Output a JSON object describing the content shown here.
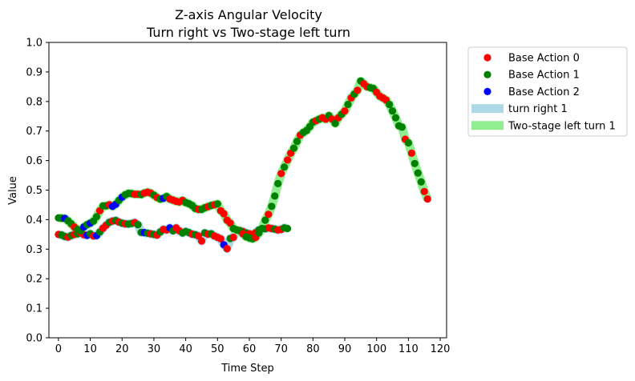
{
  "chart_data": {
    "type": "scatter",
    "title": "Z-axis Angular Velocity",
    "subtitle": "Turn right vs Two-stage left turn",
    "xlabel": "Time Step",
    "ylabel": "Value",
    "xlim": [
      -3,
      122
    ],
    "ylim": [
      0.0,
      1.0
    ],
    "xticks": [
      0,
      10,
      20,
      30,
      40,
      50,
      60,
      70,
      80,
      90,
      100,
      110,
      120
    ],
    "yticks": [
      0.0,
      0.1,
      0.2,
      0.3,
      0.4,
      0.5,
      0.6,
      0.7,
      0.8,
      0.9,
      1.0
    ],
    "grid": false,
    "legend_position": "outside-right-top",
    "colors": {
      "base_action_0": "#ff0000",
      "base_action_1": "#008000",
      "base_action_2": "#0000ff",
      "turn_right_1": "#add8e6",
      "two_stage_left_turn_1": "#90ee90"
    },
    "legend": [
      {
        "label": "Base Action 0",
        "kind": "point",
        "color": "#ff0000"
      },
      {
        "label": "Base Action 1",
        "kind": "point",
        "color": "#008000"
      },
      {
        "label": "Base Action 2",
        "kind": "point",
        "color": "#0000ff"
      },
      {
        "label": "turn right 1",
        "kind": "line",
        "color": "#add8e6"
      },
      {
        "label": "Two-stage left turn 1",
        "kind": "line",
        "color": "#90ee90"
      }
    ],
    "series": [
      {
        "name": "turn right 1",
        "color": "#add8e6",
        "points": [
          [
            0,
            0.35,
            0
          ],
          [
            1,
            0.348,
            1
          ],
          [
            2,
            0.343,
            1
          ],
          [
            3,
            0.341,
            0
          ],
          [
            4,
            0.346,
            1
          ],
          [
            5,
            0.35,
            0
          ],
          [
            6,
            0.352,
            1
          ],
          [
            7,
            0.355,
            0
          ],
          [
            8,
            0.349,
            0
          ],
          [
            9,
            0.347,
            2
          ],
          [
            10,
            0.352,
            1
          ],
          [
            11,
            0.345,
            0
          ],
          [
            12,
            0.346,
            2
          ],
          [
            13,
            0.358,
            1
          ],
          [
            14,
            0.371,
            0
          ],
          [
            15,
            0.381,
            0
          ],
          [
            16,
            0.391,
            1
          ],
          [
            17,
            0.395,
            0
          ],
          [
            18,
            0.397,
            1
          ],
          [
            19,
            0.392,
            0
          ],
          [
            20,
            0.388,
            1
          ],
          [
            21,
            0.386,
            0
          ],
          [
            22,
            0.385,
            1
          ],
          [
            23,
            0.387,
            1
          ],
          [
            24,
            0.39,
            0
          ],
          [
            25,
            0.383,
            1
          ],
          [
            26,
            0.357,
            1
          ],
          [
            27,
            0.356,
            2
          ],
          [
            28,
            0.354,
            1
          ],
          [
            29,
            0.352,
            0
          ],
          [
            30,
            0.35,
            1
          ],
          [
            31,
            0.348,
            0
          ],
          [
            32,
            0.358,
            1
          ],
          [
            33,
            0.367,
            0
          ],
          [
            34,
            0.365,
            0
          ],
          [
            35,
            0.372,
            2
          ],
          [
            36,
            0.362,
            1
          ],
          [
            37,
            0.372,
            0
          ],
          [
            38,
            0.362,
            0
          ],
          [
            39,
            0.355,
            1
          ],
          [
            40,
            0.36,
            1
          ],
          [
            41,
            0.356,
            1
          ],
          [
            42,
            0.351,
            0
          ],
          [
            43,
            0.349,
            1
          ],
          [
            44,
            0.345,
            0
          ],
          [
            45,
            0.328,
            0
          ],
          [
            46,
            0.355,
            1
          ],
          [
            47,
            0.351,
            0
          ],
          [
            48,
            0.352,
            1
          ],
          [
            49,
            0.345,
            0
          ],
          [
            50,
            0.34,
            0
          ],
          [
            51,
            0.335,
            0
          ],
          [
            52,
            0.315,
            2
          ],
          [
            53,
            0.302,
            0
          ],
          [
            54,
            0.336,
            1
          ],
          [
            55,
            0.34,
            0
          ],
          [
            56,
            0.365,
            0
          ],
          [
            57,
            0.363,
            0
          ],
          [
            58,
            0.36,
            0
          ],
          [
            59,
            0.355,
            1
          ],
          [
            60,
            0.352,
            0
          ],
          [
            61,
            0.35,
            0
          ],
          [
            62,
            0.356,
            0
          ],
          [
            63,
            0.365,
            1
          ],
          [
            64,
            0.37,
            0
          ],
          [
            65,
            0.369,
            1
          ],
          [
            66,
            0.372,
            0
          ],
          [
            67,
            0.37,
            0
          ],
          [
            68,
            0.368,
            1
          ],
          [
            69,
            0.365,
            0
          ],
          [
            70,
            0.367,
            0
          ],
          [
            71,
            0.372,
            1
          ],
          [
            72,
            0.37,
            1
          ]
        ]
      },
      {
        "name": "Two-stage left turn 1",
        "color": "#90ee90",
        "points": [
          [
            0,
            0.406,
            1
          ],
          [
            1,
            0.405,
            1
          ],
          [
            2,
            0.404,
            2
          ],
          [
            3,
            0.396,
            1
          ],
          [
            4,
            0.386,
            1
          ],
          [
            5,
            0.375,
            0
          ],
          [
            6,
            0.367,
            1
          ],
          [
            7,
            0.362,
            1
          ],
          [
            8,
            0.375,
            2
          ],
          [
            9,
            0.383,
            1
          ],
          [
            10,
            0.388,
            2
          ],
          [
            11,
            0.395,
            1
          ],
          [
            12,
            0.41,
            1
          ],
          [
            13,
            0.43,
            0
          ],
          [
            14,
            0.446,
            1
          ],
          [
            15,
            0.447,
            1
          ],
          [
            16,
            0.45,
            0
          ],
          [
            17,
            0.445,
            2
          ],
          [
            18,
            0.452,
            2
          ],
          [
            19,
            0.465,
            1
          ],
          [
            20,
            0.476,
            2
          ],
          [
            21,
            0.484,
            1
          ],
          [
            22,
            0.489,
            1
          ],
          [
            23,
            0.488,
            1
          ],
          [
            24,
            0.486,
            0
          ],
          [
            25,
            0.486,
            0
          ],
          [
            26,
            0.485,
            1
          ],
          [
            27,
            0.49,
            0
          ],
          [
            28,
            0.493,
            0
          ],
          [
            29,
            0.49,
            0
          ],
          [
            30,
            0.483,
            1
          ],
          [
            31,
            0.475,
            0
          ],
          [
            32,
            0.47,
            1
          ],
          [
            33,
            0.472,
            2
          ],
          [
            34,
            0.478,
            1
          ],
          [
            35,
            0.47,
            0
          ],
          [
            36,
            0.466,
            0
          ],
          [
            37,
            0.462,
            0
          ],
          [
            38,
            0.46,
            0
          ],
          [
            39,
            0.465,
            0
          ],
          [
            40,
            0.458,
            1
          ],
          [
            41,
            0.454,
            1
          ],
          [
            42,
            0.448,
            1
          ],
          [
            43,
            0.438,
            1
          ],
          [
            44,
            0.435,
            0
          ],
          [
            45,
            0.435,
            1
          ],
          [
            46,
            0.44,
            1
          ],
          [
            47,
            0.444,
            0
          ],
          [
            48,
            0.448,
            1
          ],
          [
            49,
            0.45,
            0
          ],
          [
            50,
            0.453,
            1
          ],
          [
            51,
            0.43,
            0
          ],
          [
            52,
            0.42,
            0
          ],
          [
            53,
            0.398,
            0
          ],
          [
            54,
            0.388,
            0
          ],
          [
            55,
            0.37,
            1
          ],
          [
            56,
            0.365,
            1
          ],
          [
            57,
            0.362,
            1
          ],
          [
            58,
            0.352,
            0
          ],
          [
            59,
            0.342,
            1
          ],
          [
            60,
            0.338,
            1
          ],
          [
            61,
            0.335,
            1
          ],
          [
            62,
            0.34,
            0
          ],
          [
            63,
            0.355,
            1
          ],
          [
            64,
            0.37,
            1
          ],
          [
            65,
            0.398,
            1
          ],
          [
            66,
            0.418,
            0
          ],
          [
            67,
            0.445,
            1
          ],
          [
            68,
            0.48,
            1
          ],
          [
            69,
            0.522,
            1
          ],
          [
            70,
            0.556,
            0
          ],
          [
            71,
            0.578,
            1
          ],
          [
            72,
            0.602,
            0
          ],
          [
            73,
            0.625,
            0
          ],
          [
            74,
            0.642,
            1
          ],
          [
            75,
            0.665,
            1
          ],
          [
            76,
            0.686,
            0
          ],
          [
            77,
            0.695,
            1
          ],
          [
            78,
            0.702,
            1
          ],
          [
            79,
            0.715,
            1
          ],
          [
            80,
            0.73,
            1
          ],
          [
            81,
            0.735,
            0
          ],
          [
            82,
            0.74,
            1
          ],
          [
            83,
            0.745,
            0
          ],
          [
            84,
            0.74,
            0
          ],
          [
            85,
            0.752,
            1
          ],
          [
            86,
            0.74,
            0
          ],
          [
            87,
            0.726,
            1
          ],
          [
            88,
            0.745,
            0
          ],
          [
            89,
            0.757,
            1
          ],
          [
            90,
            0.768,
            0
          ],
          [
            91,
            0.79,
            1
          ],
          [
            92,
            0.812,
            0
          ],
          [
            93,
            0.825,
            1
          ],
          [
            94,
            0.838,
            0
          ],
          [
            95,
            0.869,
            1
          ],
          [
            96,
            0.86,
            0
          ],
          [
            97,
            0.85,
            0
          ],
          [
            98,
            0.847,
            1
          ],
          [
            99,
            0.844,
            1
          ],
          [
            100,
            0.831,
            0
          ],
          [
            101,
            0.818,
            0
          ],
          [
            102,
            0.812,
            0
          ],
          [
            103,
            0.805,
            0
          ],
          [
            104,
            0.79,
            1
          ],
          [
            105,
            0.768,
            1
          ],
          [
            106,
            0.745,
            1
          ],
          [
            107,
            0.718,
            1
          ],
          [
            108,
            0.713,
            1
          ],
          [
            109,
            0.672,
            0
          ],
          [
            110,
            0.66,
            1
          ],
          [
            111,
            0.625,
            0
          ],
          [
            112,
            0.59,
            1
          ],
          [
            113,
            0.558,
            1
          ],
          [
            114,
            0.528,
            1
          ],
          [
            115,
            0.495,
            0
          ],
          [
            116,
            0.47,
            0
          ]
        ]
      }
    ]
  }
}
